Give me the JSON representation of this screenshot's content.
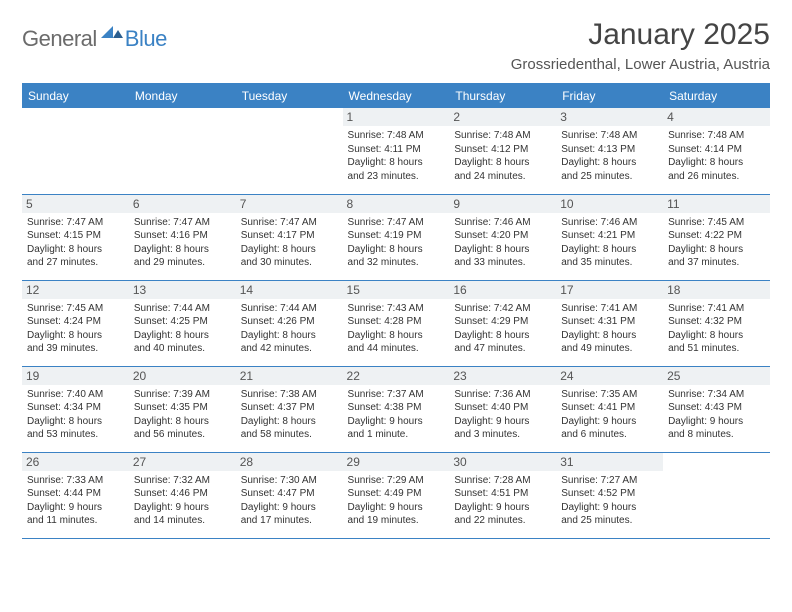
{
  "brand": {
    "part1": "General",
    "part2": "Blue"
  },
  "title": "January 2025",
  "location": "Grossriedenthal, Lower Austria, Austria",
  "colors": {
    "accent": "#3b82c4",
    "header_text": "#ffffff",
    "daybar_bg": "#eef1f3",
    "body_text": "#333333"
  },
  "days_of_week": [
    "Sunday",
    "Monday",
    "Tuesday",
    "Wednesday",
    "Thursday",
    "Friday",
    "Saturday"
  ],
  "weeks": [
    [
      {
        "n": "",
        "lines": [
          "",
          "",
          "",
          ""
        ]
      },
      {
        "n": "",
        "lines": [
          "",
          "",
          "",
          ""
        ]
      },
      {
        "n": "",
        "lines": [
          "",
          "",
          "",
          ""
        ]
      },
      {
        "n": "1",
        "lines": [
          "Sunrise: 7:48 AM",
          "Sunset: 4:11 PM",
          "Daylight: 8 hours",
          "and 23 minutes."
        ]
      },
      {
        "n": "2",
        "lines": [
          "Sunrise: 7:48 AM",
          "Sunset: 4:12 PM",
          "Daylight: 8 hours",
          "and 24 minutes."
        ]
      },
      {
        "n": "3",
        "lines": [
          "Sunrise: 7:48 AM",
          "Sunset: 4:13 PM",
          "Daylight: 8 hours",
          "and 25 minutes."
        ]
      },
      {
        "n": "4",
        "lines": [
          "Sunrise: 7:48 AM",
          "Sunset: 4:14 PM",
          "Daylight: 8 hours",
          "and 26 minutes."
        ]
      }
    ],
    [
      {
        "n": "5",
        "lines": [
          "Sunrise: 7:47 AM",
          "Sunset: 4:15 PM",
          "Daylight: 8 hours",
          "and 27 minutes."
        ]
      },
      {
        "n": "6",
        "lines": [
          "Sunrise: 7:47 AM",
          "Sunset: 4:16 PM",
          "Daylight: 8 hours",
          "and 29 minutes."
        ]
      },
      {
        "n": "7",
        "lines": [
          "Sunrise: 7:47 AM",
          "Sunset: 4:17 PM",
          "Daylight: 8 hours",
          "and 30 minutes."
        ]
      },
      {
        "n": "8",
        "lines": [
          "Sunrise: 7:47 AM",
          "Sunset: 4:19 PM",
          "Daylight: 8 hours",
          "and 32 minutes."
        ]
      },
      {
        "n": "9",
        "lines": [
          "Sunrise: 7:46 AM",
          "Sunset: 4:20 PM",
          "Daylight: 8 hours",
          "and 33 minutes."
        ]
      },
      {
        "n": "10",
        "lines": [
          "Sunrise: 7:46 AM",
          "Sunset: 4:21 PM",
          "Daylight: 8 hours",
          "and 35 minutes."
        ]
      },
      {
        "n": "11",
        "lines": [
          "Sunrise: 7:45 AM",
          "Sunset: 4:22 PM",
          "Daylight: 8 hours",
          "and 37 minutes."
        ]
      }
    ],
    [
      {
        "n": "12",
        "lines": [
          "Sunrise: 7:45 AM",
          "Sunset: 4:24 PM",
          "Daylight: 8 hours",
          "and 39 minutes."
        ]
      },
      {
        "n": "13",
        "lines": [
          "Sunrise: 7:44 AM",
          "Sunset: 4:25 PM",
          "Daylight: 8 hours",
          "and 40 minutes."
        ]
      },
      {
        "n": "14",
        "lines": [
          "Sunrise: 7:44 AM",
          "Sunset: 4:26 PM",
          "Daylight: 8 hours",
          "and 42 minutes."
        ]
      },
      {
        "n": "15",
        "lines": [
          "Sunrise: 7:43 AM",
          "Sunset: 4:28 PM",
          "Daylight: 8 hours",
          "and 44 minutes."
        ]
      },
      {
        "n": "16",
        "lines": [
          "Sunrise: 7:42 AM",
          "Sunset: 4:29 PM",
          "Daylight: 8 hours",
          "and 47 minutes."
        ]
      },
      {
        "n": "17",
        "lines": [
          "Sunrise: 7:41 AM",
          "Sunset: 4:31 PM",
          "Daylight: 8 hours",
          "and 49 minutes."
        ]
      },
      {
        "n": "18",
        "lines": [
          "Sunrise: 7:41 AM",
          "Sunset: 4:32 PM",
          "Daylight: 8 hours",
          "and 51 minutes."
        ]
      }
    ],
    [
      {
        "n": "19",
        "lines": [
          "Sunrise: 7:40 AM",
          "Sunset: 4:34 PM",
          "Daylight: 8 hours",
          "and 53 minutes."
        ]
      },
      {
        "n": "20",
        "lines": [
          "Sunrise: 7:39 AM",
          "Sunset: 4:35 PM",
          "Daylight: 8 hours",
          "and 56 minutes."
        ]
      },
      {
        "n": "21",
        "lines": [
          "Sunrise: 7:38 AM",
          "Sunset: 4:37 PM",
          "Daylight: 8 hours",
          "and 58 minutes."
        ]
      },
      {
        "n": "22",
        "lines": [
          "Sunrise: 7:37 AM",
          "Sunset: 4:38 PM",
          "Daylight: 9 hours",
          "and 1 minute."
        ]
      },
      {
        "n": "23",
        "lines": [
          "Sunrise: 7:36 AM",
          "Sunset: 4:40 PM",
          "Daylight: 9 hours",
          "and 3 minutes."
        ]
      },
      {
        "n": "24",
        "lines": [
          "Sunrise: 7:35 AM",
          "Sunset: 4:41 PM",
          "Daylight: 9 hours",
          "and 6 minutes."
        ]
      },
      {
        "n": "25",
        "lines": [
          "Sunrise: 7:34 AM",
          "Sunset: 4:43 PM",
          "Daylight: 9 hours",
          "and 8 minutes."
        ]
      }
    ],
    [
      {
        "n": "26",
        "lines": [
          "Sunrise: 7:33 AM",
          "Sunset: 4:44 PM",
          "Daylight: 9 hours",
          "and 11 minutes."
        ]
      },
      {
        "n": "27",
        "lines": [
          "Sunrise: 7:32 AM",
          "Sunset: 4:46 PM",
          "Daylight: 9 hours",
          "and 14 minutes."
        ]
      },
      {
        "n": "28",
        "lines": [
          "Sunrise: 7:30 AM",
          "Sunset: 4:47 PM",
          "Daylight: 9 hours",
          "and 17 minutes."
        ]
      },
      {
        "n": "29",
        "lines": [
          "Sunrise: 7:29 AM",
          "Sunset: 4:49 PM",
          "Daylight: 9 hours",
          "and 19 minutes."
        ]
      },
      {
        "n": "30",
        "lines": [
          "Sunrise: 7:28 AM",
          "Sunset: 4:51 PM",
          "Daylight: 9 hours",
          "and 22 minutes."
        ]
      },
      {
        "n": "31",
        "lines": [
          "Sunrise: 7:27 AM",
          "Sunset: 4:52 PM",
          "Daylight: 9 hours",
          "and 25 minutes."
        ]
      },
      {
        "n": "",
        "lines": [
          "",
          "",
          "",
          ""
        ]
      }
    ]
  ]
}
